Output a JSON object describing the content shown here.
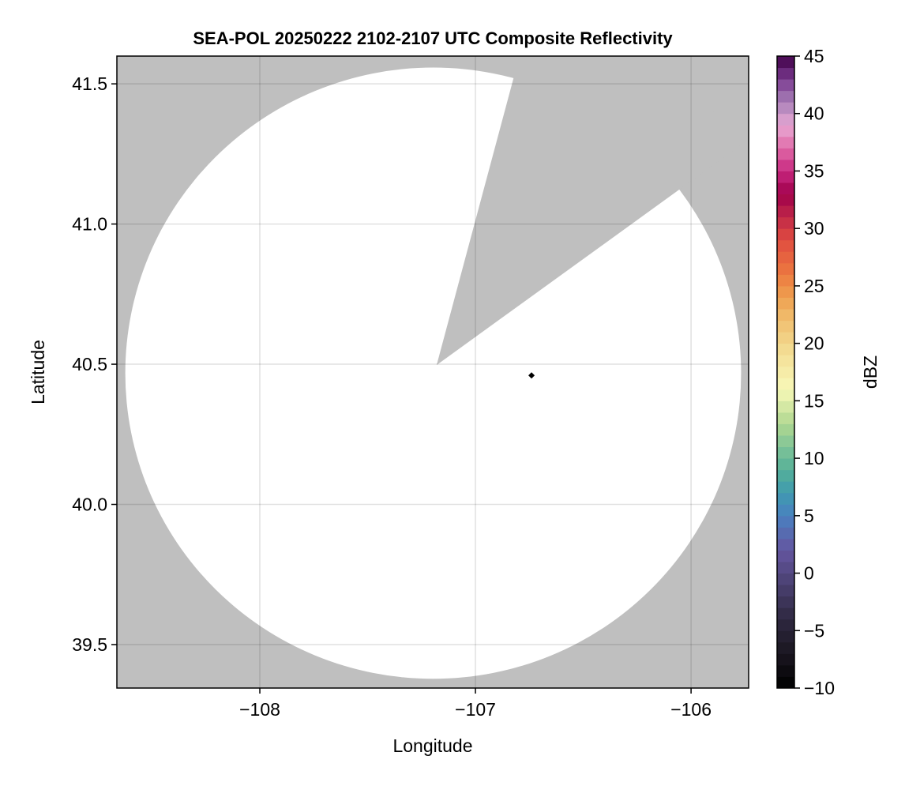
{
  "chart_data": {
    "type": "heatmap",
    "title": "SEA-POL 20250222 2102-2107 UTC Composite Reflectivity",
    "xlabel": "Longitude",
    "ylabel": "Latitude",
    "xlim": [
      -108.663,
      -105.733
    ],
    "ylim": [
      39.345,
      41.599
    ],
    "xticks": [
      -108,
      -107,
      -106
    ],
    "xtick_labels": [
      "−108",
      "−107",
      "−106"
    ],
    "yticks": [
      39.5,
      40.0,
      40.5,
      41.0,
      41.5
    ],
    "ytick_labels": [
      "39.5",
      "40.0",
      "40.5",
      "41.0",
      "41.5"
    ],
    "grid": true,
    "background_color": "#bfbfbf",
    "coverage_color": "#ffffff",
    "coverage_ellipse": {
      "center_lon": -107.196,
      "center_lat": 40.468,
      "radius_lon": 1.428,
      "radius_lat": 1.09
    },
    "blocked_sector": {
      "apex": [
        -107.18,
        40.497
      ],
      "edge_points": [
        [
          -106.82,
          41.53
        ],
        [
          -106.06,
          41.12
        ]
      ]
    },
    "marker": {
      "lon": -106.74,
      "lat": 40.46,
      "shape": "diamond",
      "color": "#000000"
    },
    "colorbar": {
      "label": "dBZ",
      "range": [
        -10,
        45
      ],
      "ticks": [
        -10,
        -5,
        0,
        5,
        10,
        15,
        20,
        25,
        30,
        35,
        40,
        45
      ],
      "tick_labels": [
        "−10",
        "−5",
        "0",
        "5",
        "10",
        "15",
        "20",
        "25",
        "30",
        "35",
        "40",
        "45"
      ],
      "colormap_stops": [
        [
          -10,
          "#000000"
        ],
        [
          -7,
          "#1a1620"
        ],
        [
          -4,
          "#2e2840"
        ],
        [
          -1,
          "#4a4070"
        ],
        [
          2,
          "#6455a0"
        ],
        [
          5,
          "#4a80c0"
        ],
        [
          7,
          "#3f9ab0"
        ],
        [
          9,
          "#55b098"
        ],
        [
          11,
          "#80c498"
        ],
        [
          13,
          "#b0d890"
        ],
        [
          16,
          "#f8f8b8"
        ],
        [
          19,
          "#f4e098"
        ],
        [
          22,
          "#f0c070"
        ],
        [
          24,
          "#eea050"
        ],
        [
          26,
          "#ec7a40"
        ],
        [
          29,
          "#e04c40"
        ],
        [
          31,
          "#c02848"
        ],
        [
          33,
          "#a0004a"
        ],
        [
          35,
          "#c82880"
        ],
        [
          37,
          "#e06aa8"
        ],
        [
          39,
          "#e8a8d4"
        ],
        [
          41,
          "#a880b8"
        ],
        [
          43,
          "#7a3a90"
        ],
        [
          45,
          "#400048"
        ]
      ]
    }
  }
}
